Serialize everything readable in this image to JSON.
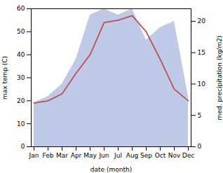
{
  "chart_data": {
    "type": "line",
    "categories": [
      "Jan",
      "Feb",
      "Mar",
      "Apr",
      "May",
      "Jun",
      "Jul",
      "Aug",
      "Sep",
      "Oct",
      "Nov",
      "Dec"
    ],
    "xlabel": "date (month)",
    "ylabel": "max temp (C)",
    "y2label": "med. precipitation (kg/m2)",
    "series": [
      {
        "type": "line",
        "color": "#c0504d",
        "values": [
          19,
          20,
          23,
          32,
          40,
          54,
          55,
          57,
          50,
          38,
          25,
          20
        ]
      },
      {
        "type": "area",
        "color": "#aab8e0",
        "axis": "y2",
        "values": [
          7,
          8,
          10,
          14,
          21,
          22,
          21,
          22,
          17,
          19,
          20,
          8
        ]
      }
    ],
    "ylim": [
      0,
      60
    ],
    "yticks": [
      0,
      10,
      20,
      30,
      40,
      50,
      60
    ],
    "y2lim": [
      0,
      22
    ],
    "y2ticks": [
      0,
      5,
      10,
      15,
      20
    ],
    "grid": false
  }
}
